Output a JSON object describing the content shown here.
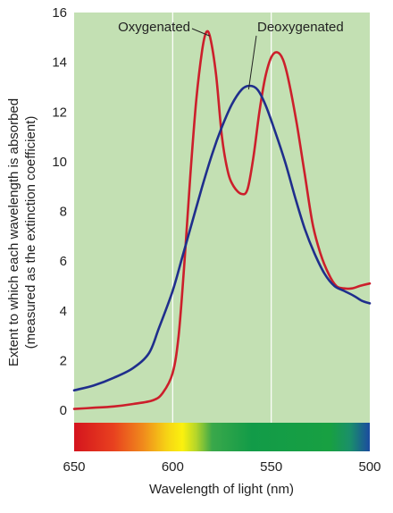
{
  "chart_data": {
    "type": "line",
    "title": "",
    "xlabel": "Wavelength of light (nm)",
    "ylabel_line1": "Extent to which each wavelength is absorbed",
    "ylabel_line2": "(measured as the extinction coefficient)",
    "xlim": [
      650,
      500
    ],
    "ylim": [
      0,
      16
    ],
    "x_ticks": [
      650,
      600,
      550,
      500
    ],
    "y_ticks": [
      0,
      2,
      4,
      6,
      8,
      10,
      12,
      14,
      16
    ],
    "grid": "vertical",
    "background_color": "#c3e0b3",
    "series": [
      {
        "name": "Oxygenated",
        "color": "#cc1f2b",
        "points": [
          [
            650,
            0.05
          ],
          [
            640,
            0.1
          ],
          [
            630,
            0.15
          ],
          [
            620,
            0.25
          ],
          [
            610,
            0.4
          ],
          [
            605,
            0.7
          ],
          [
            600,
            1.5
          ],
          [
            597,
            3.0
          ],
          [
            594,
            6.0
          ],
          [
            591,
            9.5
          ],
          [
            588,
            12.5
          ],
          [
            585,
            14.5
          ],
          [
            583,
            15.2
          ],
          [
            581,
            15.0
          ],
          [
            578,
            13.5
          ],
          [
            575,
            11.0
          ],
          [
            572,
            9.6
          ],
          [
            569,
            9.0
          ],
          [
            565,
            8.7
          ],
          [
            562,
            8.9
          ],
          [
            559,
            10.2
          ],
          [
            556,
            12.0
          ],
          [
            553,
            13.4
          ],
          [
            550,
            14.2
          ],
          [
            547,
            14.4
          ],
          [
            544,
            14.1
          ],
          [
            541,
            13.2
          ],
          [
            537,
            11.5
          ],
          [
            533,
            9.5
          ],
          [
            529,
            7.5
          ],
          [
            525,
            6.3
          ],
          [
            521,
            5.5
          ],
          [
            517,
            5.0
          ],
          [
            513,
            4.9
          ],
          [
            509,
            4.9
          ],
          [
            505,
            5.0
          ],
          [
            500,
            5.1
          ]
        ]
      },
      {
        "name": "Deoxygenated",
        "color": "#1f2e8c",
        "points": [
          [
            650,
            0.8
          ],
          [
            640,
            1.0
          ],
          [
            630,
            1.3
          ],
          [
            620,
            1.7
          ],
          [
            612,
            2.3
          ],
          [
            607,
            3.3
          ],
          [
            600,
            4.8
          ],
          [
            595,
            6.2
          ],
          [
            590,
            7.6
          ],
          [
            585,
            9.0
          ],
          [
            580,
            10.3
          ],
          [
            575,
            11.4
          ],
          [
            570,
            12.3
          ],
          [
            565,
            12.9
          ],
          [
            561,
            13.05
          ],
          [
            557,
            12.9
          ],
          [
            553,
            12.3
          ],
          [
            548,
            11.2
          ],
          [
            543,
            10.0
          ],
          [
            538,
            8.6
          ],
          [
            533,
            7.3
          ],
          [
            528,
            6.3
          ],
          [
            523,
            5.5
          ],
          [
            518,
            5.0
          ],
          [
            513,
            4.8
          ],
          [
            508,
            4.6
          ],
          [
            504,
            4.4
          ],
          [
            500,
            4.3
          ]
        ]
      }
    ],
    "spectrum_bar": [
      {
        "nm": 650,
        "color": "#d4141e"
      },
      {
        "nm": 630,
        "color": "#e8411f"
      },
      {
        "nm": 615,
        "color": "#f08a1c"
      },
      {
        "nm": 603,
        "color": "#f6d315"
      },
      {
        "nm": 595,
        "color": "#fbf10e"
      },
      {
        "nm": 588,
        "color": "#b4d52a"
      },
      {
        "nm": 580,
        "color": "#3aa84a"
      },
      {
        "nm": 560,
        "color": "#129b48"
      },
      {
        "nm": 520,
        "color": "#18a042"
      },
      {
        "nm": 510,
        "color": "#1a8f6a"
      },
      {
        "nm": 500,
        "color": "#1b4ba0"
      }
    ],
    "annotations": [
      {
        "text": "Oxygenated",
        "series": "Oxygenated",
        "point": [
          583,
          15.2
        ]
      },
      {
        "text": "Deoxygenated",
        "series": "Deoxygenated",
        "point": [
          561,
          13.05
        ]
      }
    ]
  }
}
